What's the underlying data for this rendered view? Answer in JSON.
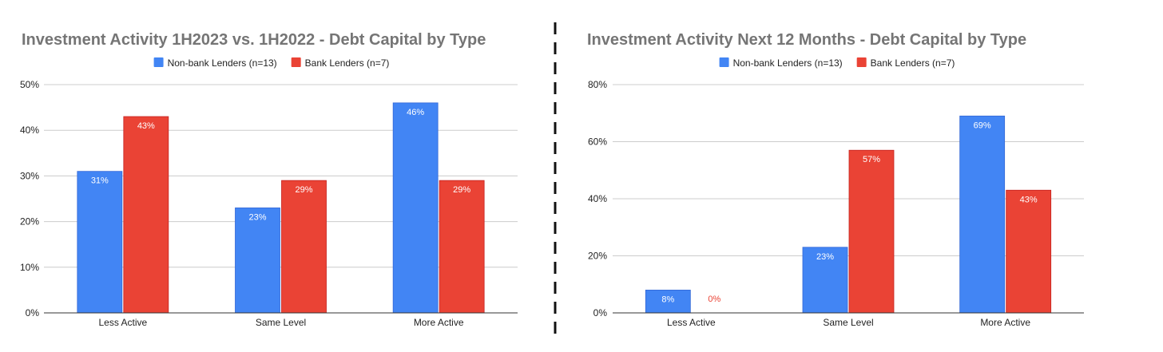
{
  "chart_data": [
    {
      "type": "bar",
      "title": "Investment Activity 1H2023 vs. 1H2022 - Debt Capital by Type",
      "categories": [
        "Less Active",
        "Same Level",
        "More Active"
      ],
      "series": [
        {
          "name": "Non-bank Lenders (n=13)",
          "color": "#4285f4",
          "values": [
            31,
            23,
            46
          ],
          "labels": [
            "31%",
            "23%",
            "46%"
          ],
          "label_color": "#ffffff"
        },
        {
          "name": "Bank Lenders (n=7)",
          "color": "#ea4335",
          "values": [
            43,
            29,
            29
          ],
          "labels": [
            "43%",
            "29%",
            "29%"
          ],
          "label_color": "#ffffff"
        }
      ],
      "yticks": [
        0,
        10,
        20,
        30,
        40,
        50
      ],
      "ytick_labels": [
        "0%",
        "10%",
        "20%",
        "30%",
        "40%",
        "50%"
      ],
      "ylim": [
        0,
        50
      ],
      "legend": "top",
      "grid": true
    },
    {
      "type": "bar",
      "title": "Investment Activity Next 12 Months - Debt Capital by Type",
      "categories": [
        "Less Active",
        "Same Level",
        "More Active"
      ],
      "series": [
        {
          "name": "Non-bank Lenders (n=13)",
          "color": "#4285f4",
          "values": [
            8,
            23,
            69
          ],
          "labels": [
            "8%",
            "23%",
            "69%"
          ],
          "label_color": "#ffffff"
        },
        {
          "name": "Bank Lenders (n=7)",
          "color": "#ea4335",
          "values": [
            0,
            57,
            43
          ],
          "labels": [
            "0%",
            "57%",
            "43%"
          ],
          "label_color": "#ffffff"
        }
      ],
      "yticks": [
        0,
        20,
        40,
        60,
        80
      ],
      "ytick_labels": [
        "0%",
        "20%",
        "40%",
        "60%",
        "80%"
      ],
      "ylim": [
        0,
        80
      ],
      "legend": "top",
      "grid": true
    }
  ]
}
